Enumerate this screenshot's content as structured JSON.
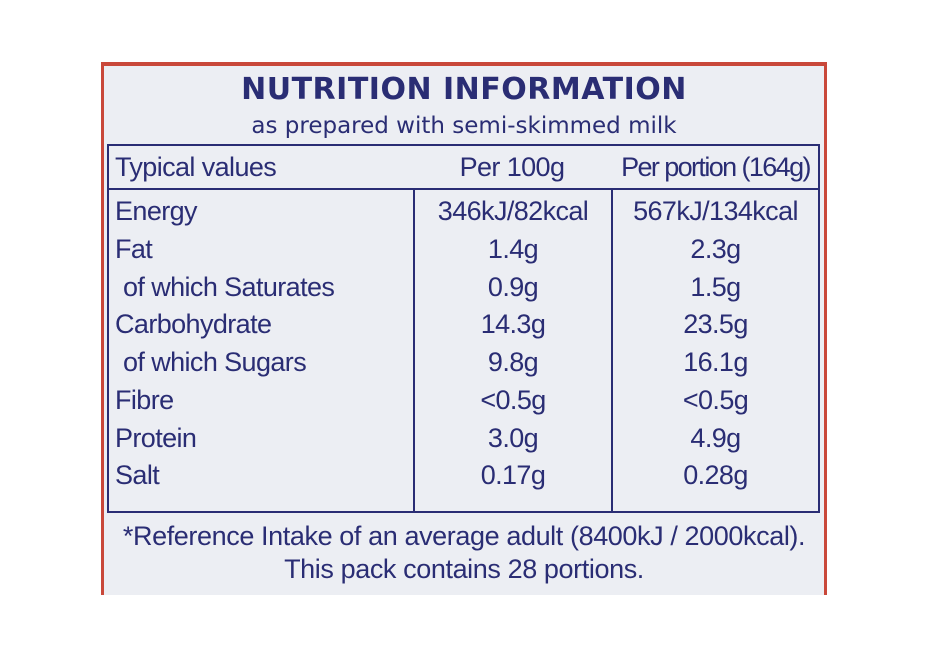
{
  "label": {
    "title": "NUTRITION INFORMATION",
    "subtitle": "as prepared with semi-skimmed milk",
    "headers": {
      "name": "Typical values",
      "col1": "Per 100g",
      "col2": "Per portion (164g)"
    },
    "rows": [
      {
        "name": "Energy",
        "col1": "346kJ/82kcal",
        "col2": "567kJ/134kcal"
      },
      {
        "name": "Fat",
        "col1": "1.4g",
        "col2": "2.3g"
      },
      {
        "name": "of which Saturates",
        "col1": "0.9g",
        "col2": "1.5g"
      },
      {
        "name": "Carbohydrate",
        "col1": "14.3g",
        "col2": "23.5g"
      },
      {
        "name": "of which Sugars",
        "col1": "9.8g",
        "col2": "16.1g"
      },
      {
        "name": "Fibre",
        "col1": "<0.5g",
        "col2": "<0.5g"
      },
      {
        "name": "Protein",
        "col1": "3.0g",
        "col2": "4.9g"
      },
      {
        "name": "Salt",
        "col1": "0.17g",
        "col2": "0.28g"
      }
    ],
    "footer_line1": "*Reference Intake of an average adult (8400kJ / 2000kcal).",
    "footer_line2": "This pack contains 28 portions.",
    "colors": {
      "text": "#2a2d74",
      "background": "#eceef3",
      "border_accent": "#c9483a"
    }
  }
}
